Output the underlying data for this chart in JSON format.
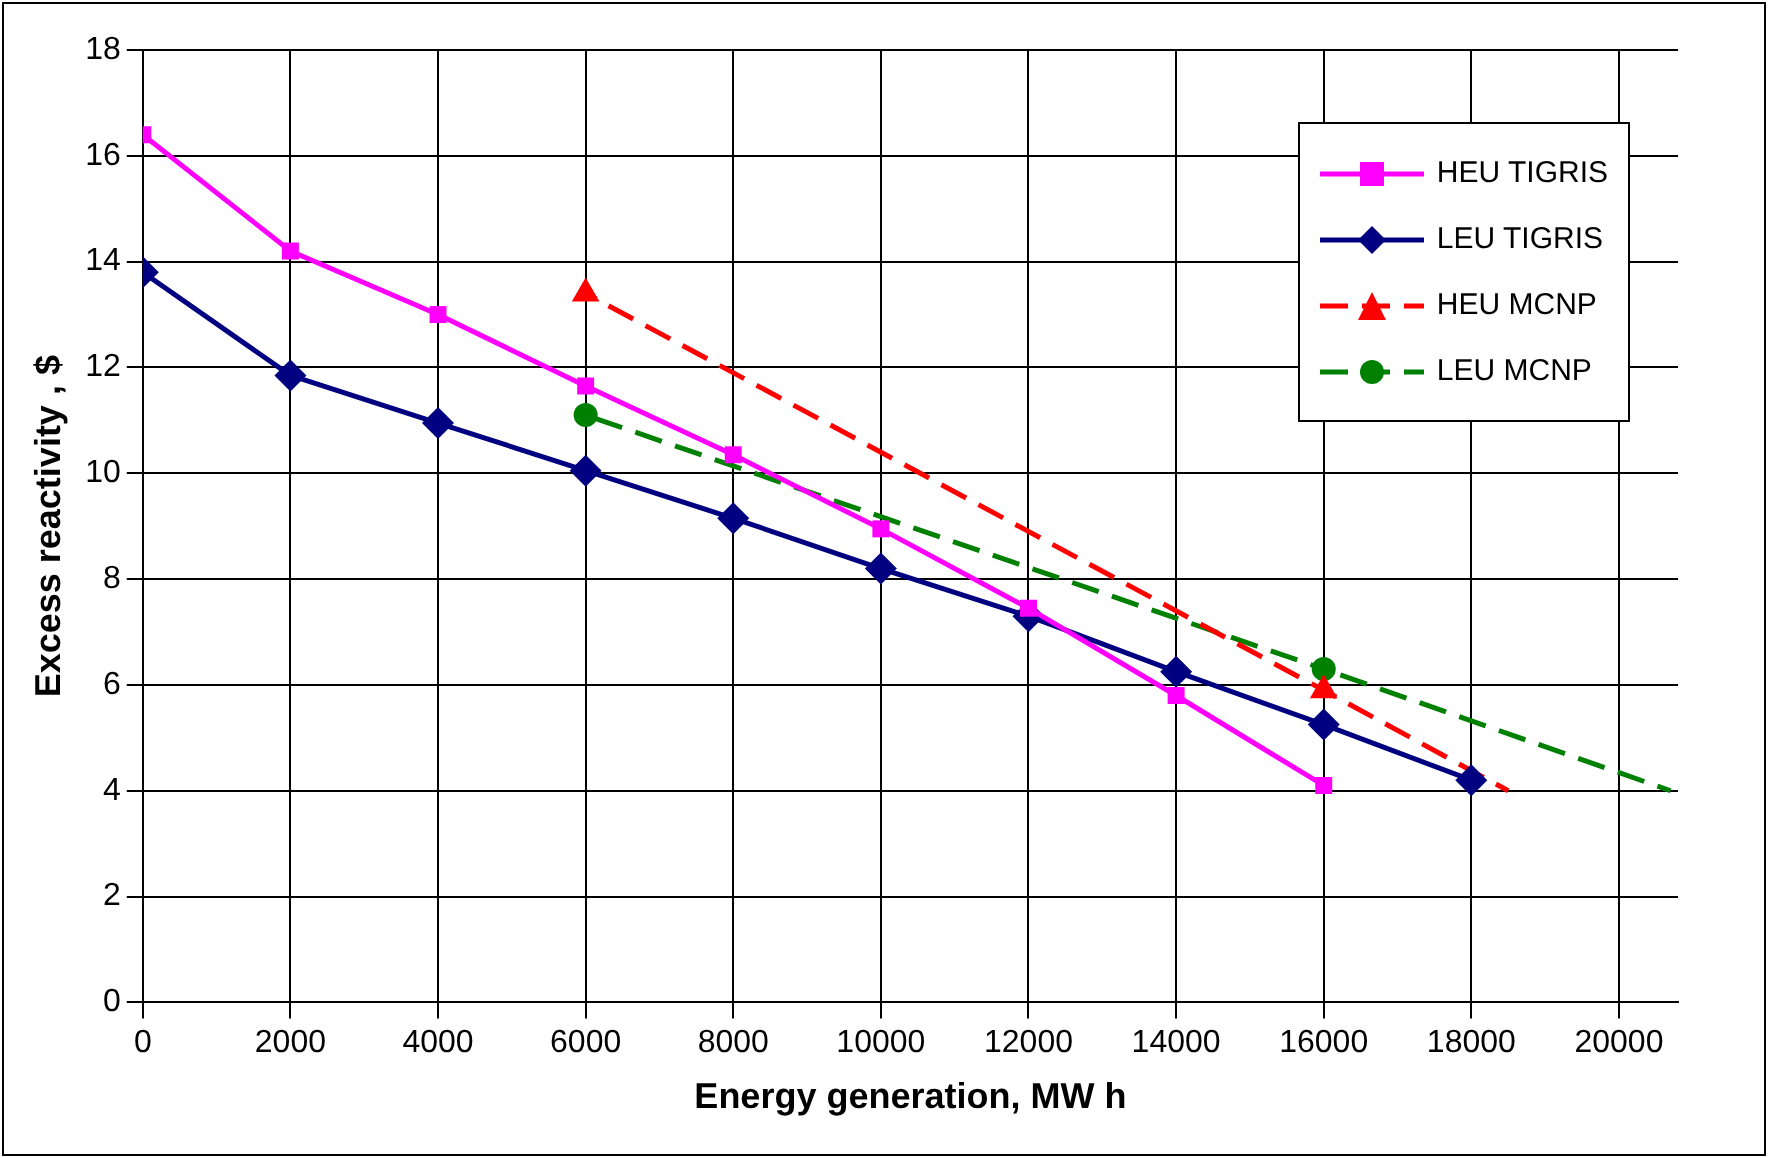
{
  "chart_data": {
    "type": "line",
    "xlabel": "Energy generation, MW h",
    "ylabel": "Excess reactivity , $",
    "xlim": [
      0,
      20800
    ],
    "xticks": [
      0,
      2000,
      4000,
      6000,
      8000,
      10000,
      12000,
      14000,
      16000,
      18000,
      20000
    ],
    "ylim": [
      0,
      18
    ],
    "yticks": [
      0,
      2,
      4,
      6,
      8,
      10,
      12,
      14,
      16,
      18
    ],
    "grid": true,
    "legend": "top right",
    "series": [
      {
        "name": "HEU TIGRIS",
        "color": "#ff00ff",
        "marker": "square",
        "line_style": "solid",
        "x": [
          0,
          2000,
          4000,
          6000,
          8000,
          10000,
          12000,
          14000,
          16000
        ],
        "values": [
          16.4,
          14.2,
          13.0,
          11.65,
          10.35,
          8.95,
          7.45,
          5.8,
          4.1
        ]
      },
      {
        "name": "LEU TIGRIS",
        "color": "#000080",
        "marker": "diamond",
        "line_style": "solid",
        "x": [
          0,
          2000,
          4000,
          6000,
          8000,
          10000,
          12000,
          14000,
          16000,
          18000
        ],
        "values": [
          13.8,
          11.85,
          10.95,
          10.05,
          9.15,
          8.2,
          7.3,
          6.25,
          5.25,
          4.2
        ]
      },
      {
        "name": "HEU MCNP",
        "color": "#ff0000",
        "marker": "triangle",
        "line_style": "dashed",
        "x": [
          6000,
          16000
        ],
        "values": [
          13.4,
          5.9
        ]
      },
      {
        "name": "LEU MCNP",
        "color": "#008000",
        "marker": "circle",
        "line_style": "dashed",
        "x": [
          6000,
          16000
        ],
        "values": [
          11.1,
          6.3
        ]
      },
      {
        "color": "#ff0000",
        "marker": "none",
        "line_style": "dashed",
        "x": [
          16000,
          18500
        ],
        "values": [
          5.9,
          4.0
        ]
      },
      {
        "color": "#008000",
        "marker": "none",
        "line_style": "dashed",
        "x": [
          16000,
          20700
        ],
        "values": [
          6.3,
          4.0
        ]
      }
    ]
  }
}
